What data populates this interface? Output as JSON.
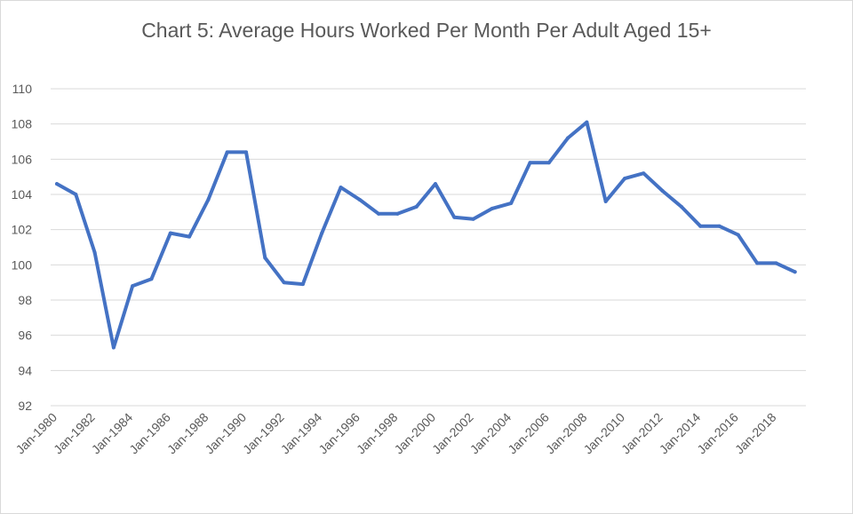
{
  "chart_data": {
    "type": "line",
    "title": "Chart 5: Average Hours Worked Per Month Per Adult Aged 15+",
    "xlabel": "",
    "ylabel": "",
    "ylim": [
      92,
      110
    ],
    "yticks": [
      92,
      94,
      96,
      98,
      100,
      102,
      104,
      106,
      108,
      110
    ],
    "grid": true,
    "legend": "none",
    "series_color": "#4472C4",
    "grid_color": "#d9d9d9",
    "x_tick_labels": [
      "Jan-1980",
      "Jan-1982",
      "Jan-1984",
      "Jan-1986",
      "Jan-1988",
      "Jan-1990",
      "Jan-1992",
      "Jan-1994",
      "Jan-1996",
      "Jan-1998",
      "Jan-2000",
      "Jan-2002",
      "Jan-2004",
      "Jan-2006",
      "Jan-2008",
      "Jan-2010",
      "Jan-2012",
      "Jan-2014",
      "Jan-2016",
      "Jan-2018"
    ],
    "x": [
      "Jan-1980",
      "Jan-1981",
      "Jan-1982",
      "Jan-1983",
      "Jan-1984",
      "Jan-1985",
      "Jan-1986",
      "Jan-1987",
      "Jan-1988",
      "Jan-1989",
      "Jan-1990",
      "Jan-1991",
      "Jan-1992",
      "Jan-1993",
      "Jan-1994",
      "Jan-1995",
      "Jan-1996",
      "Jan-1997",
      "Jan-1998",
      "Jan-1999",
      "Jan-2000",
      "Jan-2001",
      "Jan-2002",
      "Jan-2003",
      "Jan-2004",
      "Jan-2005",
      "Jan-2006",
      "Jan-2007",
      "Jan-2008",
      "Jan-2009",
      "Jan-2010",
      "Jan-2011",
      "Jan-2012",
      "Jan-2013",
      "Jan-2014",
      "Jan-2015",
      "Jan-2016",
      "Jan-2017",
      "Jan-2018",
      "Jan-2019"
    ],
    "series": [
      {
        "values": [
          104.6,
          104.0,
          100.7,
          95.3,
          98.8,
          99.2,
          101.8,
          101.6,
          103.7,
          106.4,
          106.4,
          100.4,
          99.0,
          98.9,
          101.8,
          104.4,
          103.7,
          102.9,
          102.9,
          103.3,
          104.6,
          102.7,
          102.6,
          103.2,
          103.5,
          105.8,
          105.8,
          107.2,
          108.1,
          103.6,
          104.9,
          105.2,
          104.2,
          103.3,
          102.2,
          102.2,
          101.7,
          100.1,
          100.1,
          99.6
        ]
      }
    ]
  }
}
